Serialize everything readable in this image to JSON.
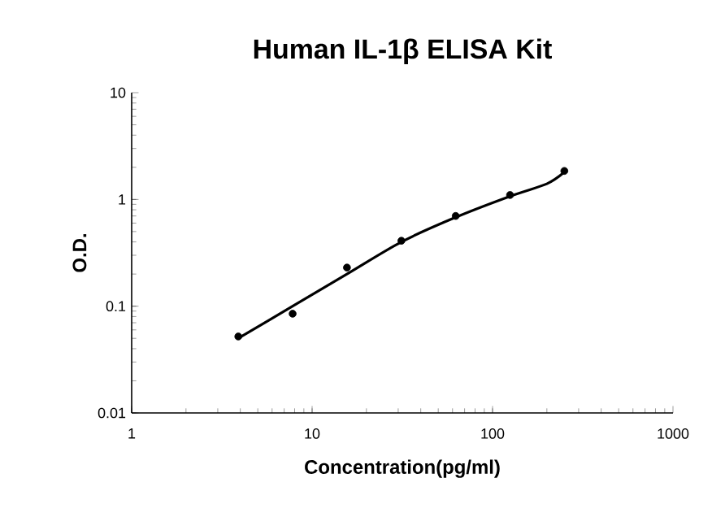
{
  "chart_data": {
    "type": "scatter",
    "title": "Human IL-1β ELISA Kit",
    "xlabel": "Concentration(pg/ml)",
    "ylabel": "O.D.",
    "log": "xy",
    "xlim": [
      1,
      1000
    ],
    "ylim": [
      0.01,
      10
    ],
    "xticks": [
      1,
      10,
      100,
      1000
    ],
    "yticks": [
      0.01,
      0.1,
      1,
      10
    ],
    "grid": false,
    "series": [
      {
        "color": "#000000",
        "marker": "circle",
        "x": [
          3.9,
          7.8,
          15.6,
          31.25,
          62.5,
          125,
          250
        ],
        "values": [
          0.052,
          0.085,
          0.23,
          0.41,
          0.7,
          1.1,
          1.85
        ]
      },
      {
        "type": "line",
        "color": "#000000",
        "marker": "none",
        "line_style": "solid",
        "x": [
          3.9,
          7.8,
          15.6,
          31.25,
          62.5,
          125,
          200,
          250
        ],
        "values": [
          0.05,
          0.1,
          0.2,
          0.4,
          0.68,
          1.07,
          1.4,
          1.8
        ]
      }
    ]
  }
}
